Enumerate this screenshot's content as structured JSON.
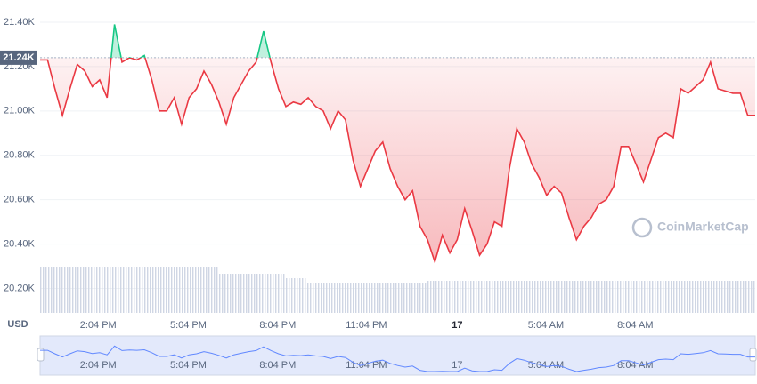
{
  "chart_data": {
    "type": "line",
    "currency": "USD",
    "watermark": "CoinMarketCap",
    "reference": {
      "value": 21.24,
      "label": "21.24K"
    },
    "values": [
      21.23,
      21.23,
      21.1,
      20.98,
      21.1,
      21.21,
      21.18,
      21.11,
      21.14,
      21.06,
      21.39,
      21.22,
      21.24,
      21.23,
      21.25,
      21.14,
      21.0,
      21.0,
      21.06,
      20.94,
      21.06,
      21.1,
      21.18,
      21.12,
      21.04,
      20.94,
      21.06,
      21.12,
      21.18,
      21.22,
      21.36,
      21.22,
      21.1,
      21.02,
      21.04,
      21.03,
      21.06,
      21.02,
      21.0,
      20.92,
      21.0,
      20.96,
      20.78,
      20.66,
      20.74,
      20.82,
      20.86,
      20.74,
      20.66,
      20.6,
      20.64,
      20.48,
      20.42,
      20.32,
      20.44,
      20.36,
      20.42,
      20.56,
      20.46,
      20.35,
      20.4,
      20.5,
      20.48,
      20.74,
      20.92,
      20.86,
      20.76,
      20.7,
      20.62,
      20.66,
      20.63,
      20.52,
      20.42,
      20.48,
      20.52,
      20.58,
      20.6,
      20.66,
      20.84,
      20.84,
      20.76,
      20.68,
      20.78,
      20.88,
      20.9,
      20.88,
      21.1,
      21.08,
      21.11,
      21.14,
      21.22,
      21.1,
      21.09,
      21.08,
      21.08,
      20.98,
      20.98
    ],
    "up_color": "#16c784",
    "down_color": "#ea3943",
    "ylim": [
      20.09,
      21.46
    ],
    "yticks": [
      {
        "value": 20.2,
        "label": "20.20K"
      },
      {
        "value": 20.4,
        "label": "20.40K"
      },
      {
        "value": 20.6,
        "label": "20.60K"
      },
      {
        "value": 20.8,
        "label": "20.80K"
      },
      {
        "value": 21.0,
        "label": "21.00K"
      },
      {
        "value": 21.2,
        "label": "21.20K"
      },
      {
        "value": 21.4,
        "label": "21.40K"
      }
    ],
    "xlim": [
      0,
      96
    ],
    "xticks": [
      {
        "value": 7.8,
        "label": "2:04 PM"
      },
      {
        "value": 19.9,
        "label": "5:04 PM"
      },
      {
        "value": 31.9,
        "label": "8:04 PM"
      },
      {
        "value": 43.8,
        "label": "11:04 PM"
      },
      {
        "value": 56.0,
        "label": "17"
      },
      {
        "value": 67.9,
        "label": "5:04 AM"
      },
      {
        "value": 79.9,
        "label": "8:04 AM"
      }
    ],
    "grid": true
  }
}
